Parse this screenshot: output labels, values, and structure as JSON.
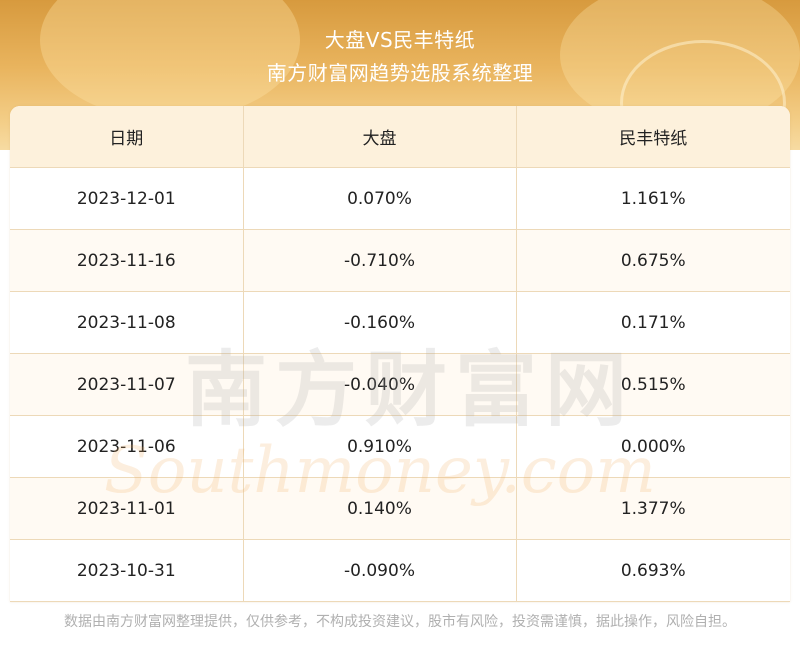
{
  "header": {
    "title": "大盘VS民丰特纸",
    "subtitle": "南方财富网趋势选股系统整理"
  },
  "table": {
    "columns": [
      "日期",
      "大盘",
      "民丰特纸"
    ],
    "rows": [
      [
        "2023-12-01",
        "0.070%",
        "1.161%"
      ],
      [
        "2023-11-16",
        "-0.710%",
        "0.675%"
      ],
      [
        "2023-11-08",
        "-0.160%",
        "0.171%"
      ],
      [
        "2023-11-07",
        "-0.040%",
        "0.515%"
      ],
      [
        "2023-11-06",
        "0.910%",
        "0.000%"
      ],
      [
        "2023-11-01",
        "0.140%",
        "1.377%"
      ],
      [
        "2023-10-31",
        "-0.090%",
        "0.693%"
      ]
    ]
  },
  "watermark": {
    "cn": "南方财富网",
    "en": "Southmoney.com"
  },
  "footer": {
    "disclaimer": "数据由南方财富网整理提供，仅供参考，不构成投资建议，股市有风险，投资需谨慎，据此操作，风险自担。"
  },
  "colors": {
    "header_top": "#d79a3e",
    "header_bottom": "#f7dba2",
    "table_header_bg": "#fdf1dc",
    "grid_line": "#edd9b8",
    "footer_text": "#b0b0b0"
  }
}
